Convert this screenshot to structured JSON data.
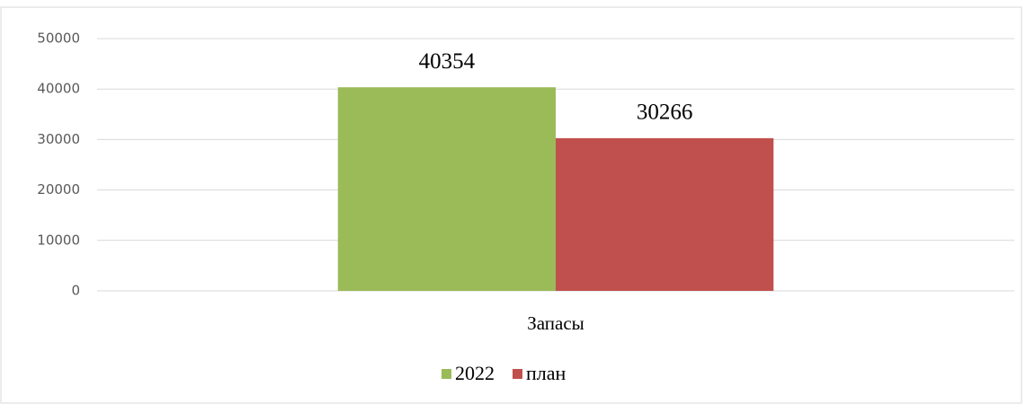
{
  "chart_data": {
    "type": "bar",
    "categories": [
      "Запасы"
    ],
    "series": [
      {
        "name": "2022",
        "color": "#9bbb59",
        "values": [
          40354
        ]
      },
      {
        "name": "план",
        "color": "#c0504d",
        "values": [
          30266
        ]
      }
    ],
    "ylim": [
      0,
      50000
    ],
    "yticks": [
      0,
      10000,
      20000,
      30000,
      40000,
      50000
    ],
    "grid": true,
    "legend": "bottom"
  }
}
